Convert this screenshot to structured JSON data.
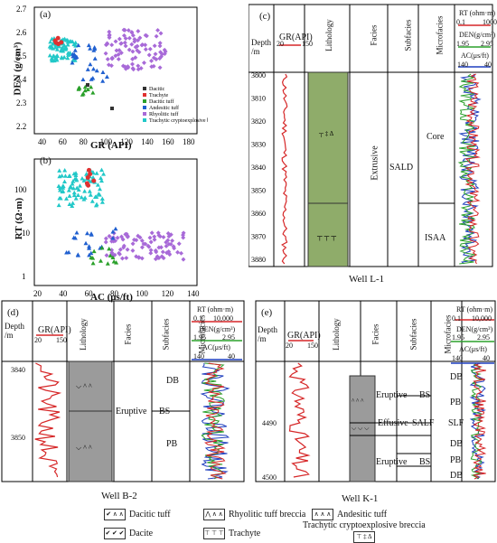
{
  "panel_a": {
    "label": "(a)",
    "ylabel": "DEN (g/cm³)",
    "xlabel": "GR (API)",
    "xticks": [
      "40",
      "60",
      "80",
      "100",
      "120",
      "140",
      "160",
      "180"
    ],
    "yticks": [
      "2.2",
      "2.3",
      "2.4",
      "2.5",
      "2.6",
      "2.7"
    ],
    "legend": [
      "Dacitic",
      "Trachyte",
      "Dacitic tuff",
      "Andesitic tuff",
      "Rhyolitic tuff",
      "Trachytic cryptoexplosive breccia"
    ]
  },
  "panel_b": {
    "label": "(b)",
    "ylabel": "RT (Ω·m)",
    "xlabel": "AC (μs/ft)",
    "xticks": [
      "20",
      "40",
      "60",
      "80",
      "100",
      "120",
      "140"
    ],
    "yticks": [
      "1",
      "10",
      "100"
    ]
  },
  "panel_c": {
    "label": "(c)",
    "depth_header": "Depth\n/m",
    "gr_header": "GR(API)",
    "gr_range": [
      "20",
      "150"
    ],
    "col_lithology": "Lithology",
    "col_facies": "Facies",
    "col_subfacies": "Subfacies",
    "col_microfacies": "Microfacies",
    "rt_header": "RT (ohm·m)",
    "rt_range": [
      "0.1",
      "1000"
    ],
    "den_header": "DEN(g/cm³)",
    "den_range": [
      "1.95",
      "2.95"
    ],
    "ac_header": "AC(μs/ft)",
    "ac_range": [
      "140",
      "40"
    ],
    "depths": [
      "3800",
      "3810",
      "3820",
      "3830",
      "3840",
      "3850",
      "3860",
      "3870",
      "3880"
    ],
    "facies": "Extrusive",
    "subfacies": "SALD",
    "microfacies": [
      "Core",
      "ISAA"
    ],
    "well": "Well L-1"
  },
  "panel_d": {
    "label": "(d)",
    "depth_header": "Depth\n/m",
    "gr_header": "GR(API)",
    "gr_range": [
      "20",
      "150"
    ],
    "col_lithology": "Lithology",
    "col_facies": "Facies",
    "col_subfacies": "Subfacies",
    "col_microfacies": "Microfacies",
    "rt_header": "RT (ohm·m)",
    "rt_range": [
      "0.1",
      "10,000"
    ],
    "den_header": "DEN(g/cm³)",
    "den_range": [
      "1.95",
      "2.95"
    ],
    "ac_header": "AC(μs/ft)",
    "ac_range": [
      "140",
      "40"
    ],
    "depths": [
      "3840",
      "3850"
    ],
    "facies": "Eruptive",
    "subfacies": "BS",
    "microfacies": [
      "DB",
      "PB"
    ],
    "well": "Well B-2"
  },
  "panel_e": {
    "label": "(e)",
    "depth_header": "Depth\n/m",
    "gr_header": "GR(API)",
    "gr_range": [
      "20",
      "150"
    ],
    "col_lithology": "Lithology",
    "col_facies": "Facies",
    "col_subfacies": "Subfacies",
    "col_microfacies": "Microfacies",
    "rt_header": "RT (ohm·m)",
    "rt_range": [
      "0.1",
      "10,000"
    ],
    "den_header": "DEN(g/cm³)",
    "den_range": [
      "1.95",
      "2.95"
    ],
    "ac_header": "AC(μs/ft)",
    "ac_range": [
      "140",
      "40"
    ],
    "depths": [
      "4490",
      "4500"
    ],
    "facies": [
      "Eruptive",
      "Effusive",
      "Eruptive"
    ],
    "subfacies": [
      "BS",
      "SALF",
      "BS"
    ],
    "microfacies": [
      "DB",
      "PB",
      "SLF",
      "DB",
      "PB",
      "DB"
    ],
    "well": "Well K-1"
  },
  "legend": {
    "items": [
      {
        "symbol": "✔ ∧ ∧",
        "label": "Dacitic tuff"
      },
      {
        "symbol": "⋀ ∧ ∧",
        "label": "Rhyolitic tuff breccia"
      },
      {
        "symbol": "∧ ∧ ∧",
        "label": "Andesitic tuff"
      },
      {
        "symbol": "✔ ✔ ✔",
        "label": "Dacite"
      },
      {
        "symbol": "⊤ ⊤ ⊤",
        "label": "Trachyte"
      },
      {
        "symbol": "⊤ ‡ Δ",
        "label": "Trachytic cryptoexplosive breccia"
      }
    ]
  },
  "colors": {
    "gr": "#d62728",
    "rt": "#d62728",
    "den": "#2ca02c",
    "ac": "#1f3fbf",
    "lithology_green": "#8fac6a",
    "lithology_grey": "#9b9b9b",
    "dacitic": "#333333",
    "trachyte": "#e03030",
    "dacitic_tuff": "#2aa02a",
    "andesitic_tuff": "#2060d0",
    "rhyolitic_tuff": "#a86ad8",
    "breccia": "#22c8c8"
  }
}
